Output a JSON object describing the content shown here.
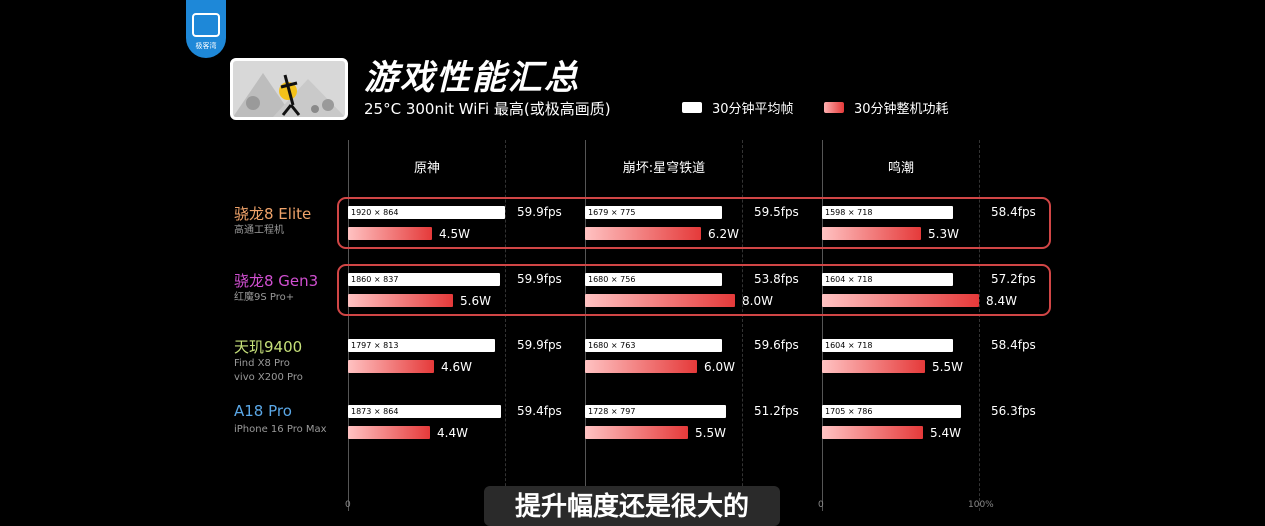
{
  "header": {
    "logo_text": "极客湾",
    "title": "游戏性能汇总",
    "subtitle": "25°C 300nit WiFi 最高(或极高画质)",
    "legend": [
      {
        "label": "30分钟平均帧",
        "color": "#ffffff"
      },
      {
        "label": "30分钟整机功耗",
        "color": "#e53a3a"
      }
    ]
  },
  "caption": "提升幅度还是很大的",
  "axis_ticks": [
    "0",
    "0",
    "100%"
  ],
  "chart_data": {
    "type": "bar",
    "games": [
      "原神",
      "崩坏:星穹铁道",
      "鸣潮"
    ],
    "series": [
      {
        "name": "30分钟平均帧",
        "unit": "fps"
      },
      {
        "name": "30分钟整机功耗",
        "unit": "W"
      }
    ],
    "chips": [
      {
        "name": "骁龙8 Elite",
        "devices": [
          "高通工程机"
        ],
        "color": "#f0a36a",
        "highlight": true,
        "results": [
          {
            "res": "1920 × 864",
            "fps": 59.9,
            "fps_label": "59.9fps",
            "power": 4.5,
            "power_label": "4.5W"
          },
          {
            "res": "1679 × 775",
            "fps": 59.5,
            "fps_label": "59.5fps",
            "power": 6.2,
            "power_label": "6.2W"
          },
          {
            "res": "1598 × 718",
            "fps": 58.4,
            "fps_label": "58.4fps",
            "power": 5.3,
            "power_label": "5.3W"
          }
        ]
      },
      {
        "name": "骁龙8 Gen3",
        "devices": [
          "红魔9S Pro+"
        ],
        "color": "#d04fd0",
        "highlight": true,
        "results": [
          {
            "res": "1860 × 837",
            "fps": 59.9,
            "fps_label": "59.9fps",
            "power": 5.6,
            "power_label": "5.6W"
          },
          {
            "res": "1680 × 756",
            "fps": 53.8,
            "fps_label": "53.8fps",
            "power": 8.0,
            "power_label": "8.0W"
          },
          {
            "res": "1604 × 718",
            "fps": 57.2,
            "fps_label": "57.2fps",
            "power": 8.4,
            "power_label": "8.4W"
          }
        ]
      },
      {
        "name": "天玑9400",
        "devices": [
          "Find X8 Pro",
          "vivo X200 Pro"
        ],
        "color": "#c6e07a",
        "highlight": false,
        "results": [
          {
            "res": "1797 × 813",
            "fps": 59.9,
            "fps_label": "59.9fps",
            "power": 4.6,
            "power_label": "4.6W"
          },
          {
            "res": "1680 × 763",
            "fps": 59.6,
            "fps_label": "59.6fps",
            "power": 6.0,
            "power_label": "6.0W"
          },
          {
            "res": "1604 × 718",
            "fps": 58.4,
            "fps_label": "58.4fps",
            "power": 5.5,
            "power_label": "5.5W"
          }
        ]
      },
      {
        "name": "A18 Pro",
        "devices": [
          "iPhone 16 Pro Max"
        ],
        "color": "#5aa7e6",
        "highlight": false,
        "results": [
          {
            "res": "1873 × 864",
            "fps": 59.4,
            "fps_label": "59.4fps",
            "power": 4.4,
            "power_label": "4.4W"
          },
          {
            "res": "1728 × 797",
            "fps": 51.2,
            "fps_label": "51.2fps",
            "power": 5.5,
            "power_label": "5.5W"
          },
          {
            "res": "1705 × 786",
            "fps": 56.3,
            "fps_label": "56.3fps",
            "power": 5.4,
            "power_label": "5.4W"
          }
        ]
      }
    ]
  }
}
